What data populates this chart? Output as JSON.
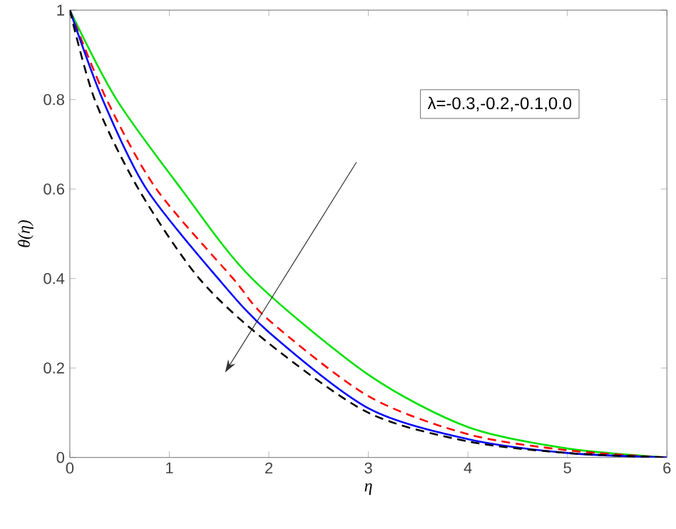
{
  "chart_data": {
    "type": "line",
    "xlabel": "η",
    "ylabel": "θ(η)",
    "annotations": [
      "λ=-0.3,-0.2,-0.1,0.0"
    ],
    "xlim": [
      0,
      6
    ],
    "ylim": [
      0,
      1
    ],
    "xticks": [
      0,
      1,
      2,
      3,
      4,
      5,
      6
    ],
    "yticks": [
      0,
      0.2,
      0.4,
      0.6,
      0.8,
      1
    ],
    "grid": false,
    "series": [
      {
        "color": "#00e000",
        "line_style": "solid",
        "x": [
          0,
          0.47,
          1.12,
          1.83,
          3,
          4,
          5,
          6
        ],
        "values": [
          1,
          0.8,
          0.6,
          0.4,
          0.185,
          0.068,
          0.02,
          0
        ]
      },
      {
        "color": "#ff0000",
        "line_style": "dashed",
        "x": [
          0,
          0.37,
          0.87,
          1.64,
          2,
          3,
          4,
          5,
          6
        ],
        "values": [
          1,
          0.8,
          0.6,
          0.4,
          0.307,
          0.137,
          0.052,
          0.016,
          0
        ]
      },
      {
        "color": "#0000ff",
        "line_style": "solid",
        "x": [
          0,
          0.33,
          0.77,
          1.49,
          2,
          3,
          4,
          5,
          6
        ],
        "values": [
          1,
          0.8,
          0.6,
          0.4,
          0.28,
          0.11,
          0.041,
          0.01,
          0
        ]
      },
      {
        "color": "#000000",
        "line_style": "dashed",
        "x": [
          0,
          0.25,
          0.69,
          1.3,
          2,
          3,
          4,
          5,
          6
        ],
        "values": [
          1,
          0.8,
          0.6,
          0.4,
          0.255,
          0.1,
          0.036,
          0.01,
          0
        ]
      }
    ]
  }
}
